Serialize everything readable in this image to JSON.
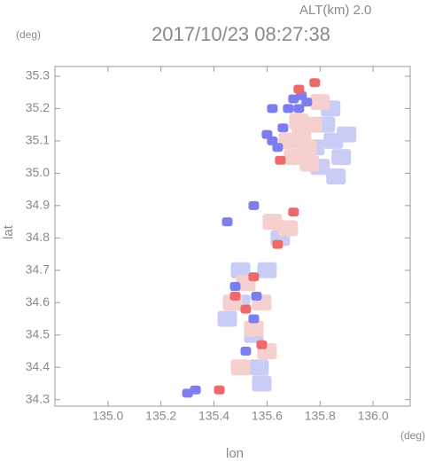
{
  "chart_data": {
    "type": "scatter",
    "title": "2017/10/23 08:27:38",
    "annotation": "ALT(km) 2.0",
    "y_unit": "(deg)",
    "x_unit": "(deg)",
    "x_label": "lon",
    "y_label": "lat",
    "xlim": [
      134.8,
      136.14
    ],
    "ylim": [
      34.28,
      35.33
    ],
    "xticks": [
      {
        "value": 135,
        "label": "135.0"
      },
      135.2,
      135.4,
      135.6,
      135.8,
      {
        "value": 136,
        "label": "136.0"
      }
    ],
    "yticks": [
      34.3,
      34.4,
      34.5,
      34.6,
      34.7,
      34.8,
      34.9,
      {
        "value": 35,
        "label": "35.0"
      },
      35.1,
      35.2,
      35.3
    ],
    "series": [
      {
        "color": "#c9cdf6",
        "x": [
          135.82,
          135.85,
          135.88,
          135.8,
          135.9,
          135.84,
          135.78,
          135.86,
          135.5,
          135.55,
          135.57,
          135.45,
          135.6,
          135.65,
          135.5,
          135.58
        ],
        "y": [
          35.15,
          35.1,
          35.05,
          35.02,
          35.12,
          35.2,
          35.08,
          34.99,
          34.6,
          34.5,
          34.4,
          34.55,
          34.7,
          34.8,
          34.7,
          34.35
        ]
      },
      {
        "color": "#f6cfcf",
        "x": [
          135.73,
          135.75,
          135.7,
          135.77,
          135.72,
          135.68,
          135.76,
          135.8,
          135.52,
          135.58,
          135.47,
          135.55,
          135.6,
          135.62,
          135.68,
          135.5
        ],
        "y": [
          35.12,
          35.08,
          35.05,
          35.15,
          35.16,
          35.1,
          35.03,
          35.22,
          34.66,
          34.6,
          34.6,
          34.52,
          34.45,
          34.85,
          34.83,
          34.4
        ]
      },
      {
        "color": "#7d7def",
        "x": [
          135.73,
          135.75,
          135.72,
          135.7,
          135.62,
          135.6,
          135.64,
          135.66,
          135.68,
          135.62,
          135.3,
          135.33,
          135.55,
          135.48,
          135.56,
          135.45,
          135.55,
          135.52
        ],
        "y": [
          35.24,
          35.22,
          35.2,
          35.23,
          35.1,
          35.12,
          35.08,
          35.14,
          35.2,
          35.2,
          34.32,
          34.33,
          34.55,
          34.65,
          34.62,
          34.85,
          34.9,
          34.45
        ]
      },
      {
        "color": "#ee6a6a",
        "x": [
          135.78,
          135.72,
          135.65,
          135.7,
          135.55,
          135.52,
          135.48,
          135.58,
          135.42,
          135.64
        ],
        "y": [
          35.28,
          35.26,
          35.04,
          34.88,
          34.68,
          34.58,
          34.62,
          34.47,
          34.33,
          34.78
        ]
      }
    ]
  }
}
